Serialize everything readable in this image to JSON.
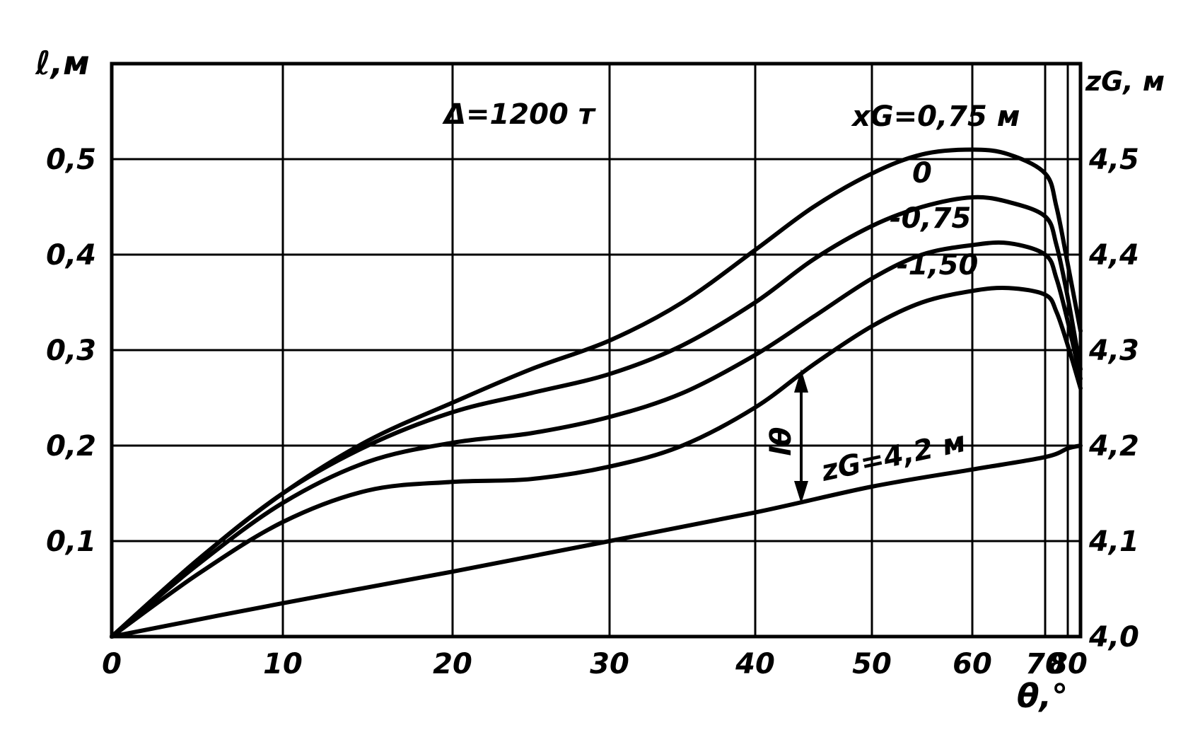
{
  "chart_data": {
    "type": "line",
    "x_axis": {
      "label": "θ,°",
      "ticks": [
        0,
        10,
        20,
        30,
        40,
        50,
        60,
        70,
        80
      ],
      "tick_labels": [
        "0",
        "10",
        "20",
        "30",
        "40",
        "50",
        "60",
        "70",
        "80"
      ],
      "range": [
        0,
        83
      ],
      "scale": "nonlinear (sin-like compression toward 80)"
    },
    "y_axis_left": {
      "label": "ℓ,м",
      "ticks": [
        0.1,
        0.2,
        0.3,
        0.4,
        0.5
      ],
      "tick_labels": [
        "0,1",
        "0,2",
        "0,3",
        "0,4",
        "0,5"
      ],
      "range": [
        0,
        0.6
      ]
    },
    "y_axis_right": {
      "label": "zG, м",
      "ticks": [
        4.0,
        4.1,
        4.2,
        4.3,
        4.4,
        4.5
      ],
      "tick_labels": [
        "4,0",
        "4,1",
        "4,2",
        "4,3",
        "4,4",
        "4,5"
      ],
      "range": [
        4.0,
        4.6
      ]
    },
    "grid": true,
    "annotations": {
      "displacement": "Δ=1200 т",
      "xg_prefix": "xG=0,75 м",
      "zg_line": "zG=4,2 м",
      "arrow_label": "lθ"
    },
    "series": [
      {
        "name": "xG=0,75 м",
        "label_text": "xG=0,75 м",
        "points": [
          [
            0,
            0
          ],
          [
            5,
            0.08
          ],
          [
            10,
            0.15
          ],
          [
            15,
            0.205
          ],
          [
            20,
            0.245
          ],
          [
            25,
            0.28
          ],
          [
            30,
            0.31
          ],
          [
            35,
            0.35
          ],
          [
            40,
            0.405
          ],
          [
            45,
            0.45
          ],
          [
            50,
            0.485
          ],
          [
            55,
            0.505
          ],
          [
            60,
            0.51
          ],
          [
            65,
            0.505
          ],
          [
            70,
            0.485
          ],
          [
            75,
            0.45
          ],
          [
            80,
            0.39
          ],
          [
            83,
            0.32
          ]
        ]
      },
      {
        "name": "0",
        "label_text": "0",
        "points": [
          [
            0,
            0
          ],
          [
            5,
            0.08
          ],
          [
            10,
            0.15
          ],
          [
            15,
            0.2
          ],
          [
            20,
            0.235
          ],
          [
            25,
            0.255
          ],
          [
            30,
            0.275
          ],
          [
            35,
            0.305
          ],
          [
            40,
            0.35
          ],
          [
            45,
            0.395
          ],
          [
            50,
            0.43
          ],
          [
            55,
            0.45
          ],
          [
            60,
            0.46
          ],
          [
            65,
            0.455
          ],
          [
            70,
            0.44
          ],
          [
            75,
            0.41
          ],
          [
            80,
            0.355
          ],
          [
            83,
            0.28
          ]
        ]
      },
      {
        "name": "-0,75",
        "label_text": "-0,75",
        "points": [
          [
            0,
            0
          ],
          [
            5,
            0.075
          ],
          [
            10,
            0.14
          ],
          [
            15,
            0.183
          ],
          [
            20,
            0.203
          ],
          [
            25,
            0.213
          ],
          [
            30,
            0.23
          ],
          [
            35,
            0.255
          ],
          [
            40,
            0.295
          ],
          [
            45,
            0.335
          ],
          [
            50,
            0.375
          ],
          [
            55,
            0.4
          ],
          [
            60,
            0.41
          ],
          [
            65,
            0.412
          ],
          [
            70,
            0.4
          ],
          [
            75,
            0.375
          ],
          [
            80,
            0.33
          ],
          [
            83,
            0.27
          ]
        ]
      },
      {
        "name": "-1,50",
        "label_text": "-1,50",
        "points": [
          [
            0,
            0
          ],
          [
            5,
            0.065
          ],
          [
            10,
            0.12
          ],
          [
            15,
            0.153
          ],
          [
            20,
            0.162
          ],
          [
            25,
            0.165
          ],
          [
            30,
            0.178
          ],
          [
            35,
            0.2
          ],
          [
            40,
            0.24
          ],
          [
            45,
            0.285
          ],
          [
            50,
            0.325
          ],
          [
            55,
            0.35
          ],
          [
            60,
            0.362
          ],
          [
            65,
            0.365
          ],
          [
            70,
            0.358
          ],
          [
            75,
            0.34
          ],
          [
            80,
            0.305
          ],
          [
            83,
            0.26
          ]
        ]
      },
      {
        "name": "zG=4,2 м",
        "label_text": "zG=4,2 м",
        "points": [
          [
            0,
            0
          ],
          [
            10,
            0.035
          ],
          [
            20,
            0.068
          ],
          [
            30,
            0.1
          ],
          [
            40,
            0.13
          ],
          [
            50,
            0.157
          ],
          [
            60,
            0.175
          ],
          [
            70,
            0.188
          ],
          [
            80,
            0.197
          ],
          [
            83,
            0.2
          ]
        ]
      }
    ]
  }
}
